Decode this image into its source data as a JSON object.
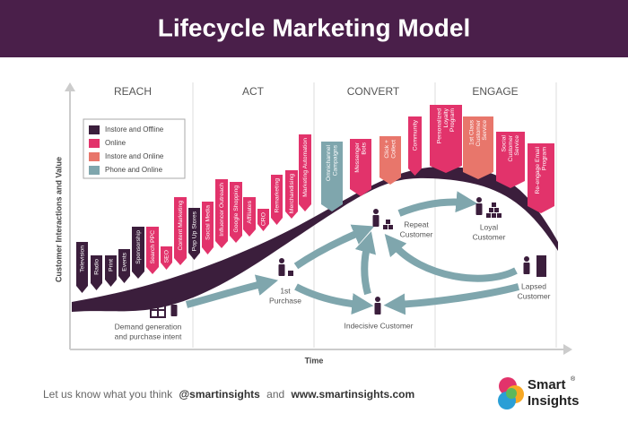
{
  "header": {
    "title": "Lifecycle Marketing Model"
  },
  "stages": [
    "REACH",
    "ACT",
    "CONVERT",
    "ENGAGE"
  ],
  "legend": [
    {
      "label": "Instore and Offline",
      "color": "#3b1e3c"
    },
    {
      "label": "Online",
      "color": "#e2336b"
    },
    {
      "label": "Instore and Online",
      "color": "#e8766b"
    },
    {
      "label": "Phone and Online",
      "color": "#7fa6ad"
    }
  ],
  "axes": {
    "y": "Customer Interactions and Value",
    "x": "Time"
  },
  "flags": [
    {
      "lines": [
        "Television"
      ],
      "color": "#3b1e3c"
    },
    {
      "lines": [
        "Radio"
      ],
      "color": "#3b1e3c"
    },
    {
      "lines": [
        "Print"
      ],
      "color": "#3b1e3c"
    },
    {
      "lines": [
        "Events"
      ],
      "color": "#3b1e3c"
    },
    {
      "lines": [
        "Sponsorship"
      ],
      "color": "#3b1e3c"
    },
    {
      "lines": [
        "Search PPC"
      ],
      "color": "#e2336b"
    },
    {
      "lines": [
        "SEO"
      ],
      "color": "#e2336b"
    },
    {
      "lines": [
        "Content Marketing"
      ],
      "color": "#e2336b"
    },
    {
      "lines": [
        "Pop Up Stores"
      ],
      "color": "#3b1e3c"
    },
    {
      "lines": [
        "Social Media"
      ],
      "color": "#e2336b"
    },
    {
      "lines": [
        "Influencer Outreach"
      ],
      "color": "#e2336b"
    },
    {
      "lines": [
        "Google Shopping"
      ],
      "color": "#e2336b"
    },
    {
      "lines": [
        "Affiliates"
      ],
      "color": "#e2336b"
    },
    {
      "lines": [
        "CRO"
      ],
      "color": "#e2336b"
    },
    {
      "lines": [
        "Remarketing"
      ],
      "color": "#e2336b"
    },
    {
      "lines": [
        "Merchandising"
      ],
      "color": "#e2336b"
    },
    {
      "lines": [
        "Marketing Automation"
      ],
      "color": "#e2336b"
    },
    {
      "lines": [
        "Omnichannel",
        "Campaigns"
      ],
      "color": "#7fa6ad"
    },
    {
      "lines": [
        "Messenger",
        "Bots"
      ],
      "color": "#e2336b"
    },
    {
      "lines": [
        "Click +",
        "Collect"
      ],
      "color": "#e8766b"
    },
    {
      "lines": [
        "Community"
      ],
      "color": "#e2336b"
    },
    {
      "lines": [
        "Personalized",
        "Loyalty",
        "Program"
      ],
      "color": "#e2336b"
    },
    {
      "lines": [
        "1st Class",
        "Customer",
        "Service"
      ],
      "color": "#e8766b"
    },
    {
      "lines": [
        "Social",
        "Customer",
        "Service"
      ],
      "color": "#e2336b"
    },
    {
      "lines": [
        "Re-engage Email",
        "Program"
      ],
      "color": "#e2336b"
    }
  ],
  "nodes": [
    {
      "lines": [
        "Demand generation",
        "and purchase intent"
      ]
    },
    {
      "lines": [
        "1st",
        "Purchase"
      ]
    },
    {
      "lines": [
        "Repeat",
        "Customer"
      ]
    },
    {
      "lines": [
        "Loyal",
        "Customer"
      ]
    },
    {
      "lines": [
        "Lapsed",
        "Customer"
      ]
    },
    {
      "lines": [
        "Indecisive Customer"
      ]
    }
  ],
  "footer": {
    "prompt": "Let us know what you think",
    "handle": "@smartinsights",
    "joiner": "and",
    "url": "www.smartinsights.com"
  },
  "logo": {
    "line1": "Smart",
    "mark": "®",
    "line2": "Insights"
  }
}
